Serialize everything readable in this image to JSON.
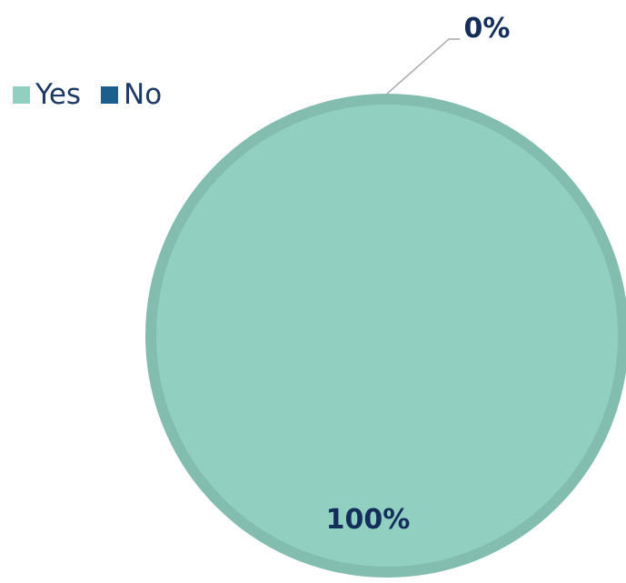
{
  "chart_data": {
    "type": "pie",
    "categories": [
      "Yes",
      "No"
    ],
    "values": [
      100,
      0
    ],
    "data_labels": [
      "100%",
      "0%"
    ],
    "colors": {
      "Yes": "#91cfc0",
      "Yes_border": "#83bdaf",
      "No": "#1a5f8e"
    },
    "legend_position": "top-left",
    "title": ""
  }
}
